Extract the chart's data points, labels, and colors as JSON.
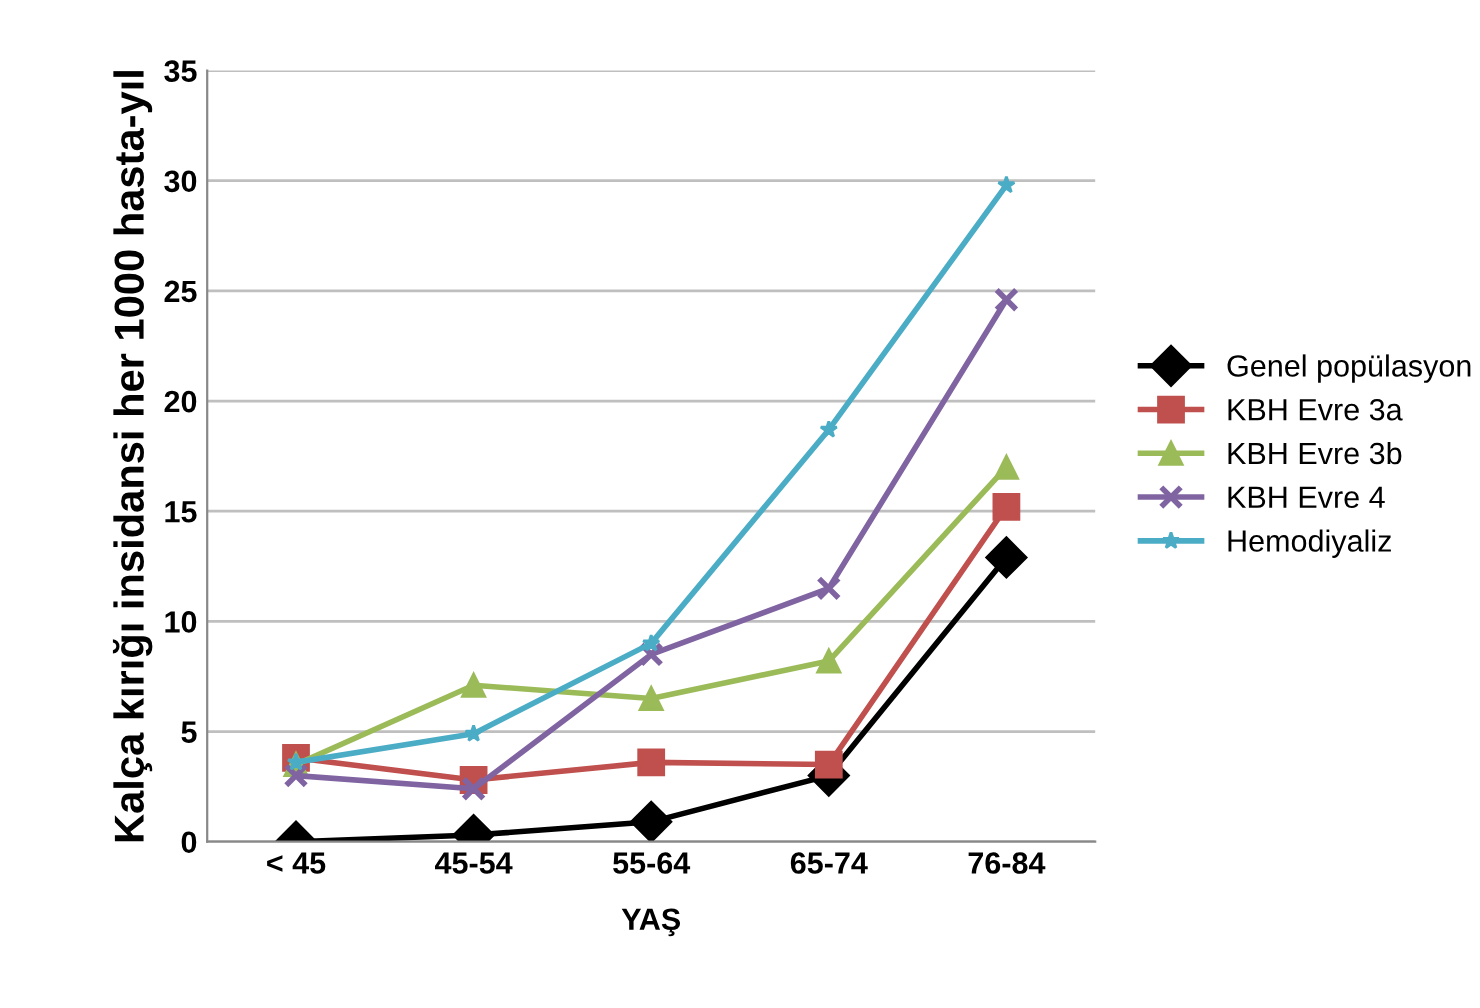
{
  "chart_data": {
    "type": "line",
    "xlabel": "YAŞ",
    "ylabel": "Kalça kırığı insidansi her 1000 hasta-yıl",
    "categories": [
      "< 45",
      "45-54",
      "55-64",
      "65-74",
      "76-84"
    ],
    "series": [
      {
        "name": "Genel popülasyon",
        "color": "#000000",
        "marker": "diamond",
        "values": [
          0.0,
          0.3,
          0.9,
          3.0,
          12.9
        ]
      },
      {
        "name": "KBH Evre 3a",
        "color": "#c0504d",
        "marker": "square",
        "values": [
          3.8,
          2.8,
          3.6,
          3.5,
          15.2
        ]
      },
      {
        "name": "KBH Evre 3b",
        "color": "#9bbb59",
        "marker": "triangle",
        "values": [
          3.5,
          7.1,
          6.5,
          8.2,
          17.0
        ]
      },
      {
        "name": "KBH Evre 4",
        "color": "#8064a2",
        "marker": "cross",
        "values": [
          3.0,
          2.4,
          8.5,
          11.5,
          24.6
        ]
      },
      {
        "name": "Hemodiyaliz",
        "color": "#4bacc6",
        "marker": "star",
        "values": [
          3.6,
          4.9,
          9.0,
          18.7,
          29.8
        ]
      }
    ],
    "ylim": [
      0,
      35
    ],
    "yticks": [
      0,
      5,
      10,
      15,
      20,
      25,
      30,
      35
    ],
    "grid": "y",
    "legend": "right",
    "line_style": "solid"
  }
}
